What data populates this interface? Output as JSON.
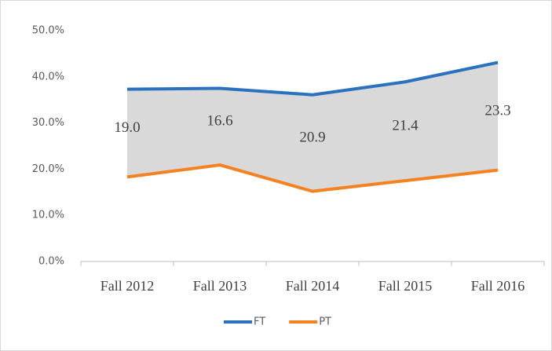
{
  "chart_data": {
    "type": "line",
    "categories": [
      "Fall 2012",
      "Fall 2013",
      "Fall 2014",
      "Fall 2015",
      "Fall 2016"
    ],
    "series": [
      {
        "name": "FT",
        "color": "#2a72c0",
        "values": [
          37.3,
          37.5,
          36.1,
          38.9,
          43.1
        ]
      },
      {
        "name": "PT",
        "color": "#f58220",
        "values": [
          18.3,
          20.9,
          15.2,
          17.5,
          19.8
        ]
      }
    ],
    "annotations": [
      "19.0",
      "16.6",
      "20.9",
      "21.4",
      "23.3"
    ],
    "fill_between_color": "#d9d9d9",
    "ylim": [
      0,
      50
    ],
    "yticks": [
      {
        "value": 0,
        "label": "0.0%"
      },
      {
        "value": 10,
        "label": "10.0%"
      },
      {
        "value": 20,
        "label": "20.0%"
      },
      {
        "value": 30,
        "label": "30.0%"
      },
      {
        "value": 40,
        "label": "40.0%"
      },
      {
        "value": 50,
        "label": "50.0%"
      }
    ],
    "grid": false,
    "legend": "bottom"
  }
}
